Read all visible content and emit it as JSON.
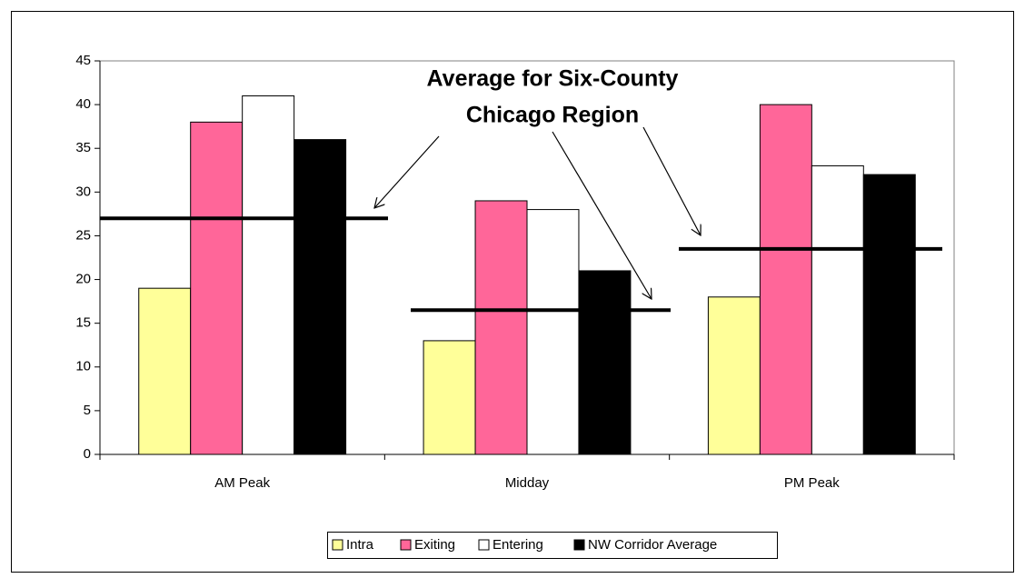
{
  "chart_data": {
    "type": "bar",
    "categories": [
      "AM Peak",
      "Midday",
      "PM Peak"
    ],
    "series": [
      {
        "name": "Intra",
        "color": "#ffff99",
        "values": [
          19,
          13,
          18
        ]
      },
      {
        "name": "Exiting",
        "color": "#ff6699",
        "values": [
          38,
          29,
          40
        ]
      },
      {
        "name": "Entering",
        "color": "#ffffff",
        "values": [
          41,
          28,
          33
        ]
      },
      {
        "name": "NW Corridor Average",
        "color": "#000000",
        "values": [
          36,
          21,
          32
        ]
      }
    ],
    "ylim": [
      0,
      45
    ],
    "yticks": [
      0,
      5,
      10,
      15,
      20,
      25,
      30,
      35,
      40,
      45
    ],
    "legend": "bottom",
    "annotation": {
      "text": [
        "Average for Six-County",
        "Chicago Region"
      ],
      "region_average": [
        27,
        16.5,
        23.5
      ]
    }
  }
}
